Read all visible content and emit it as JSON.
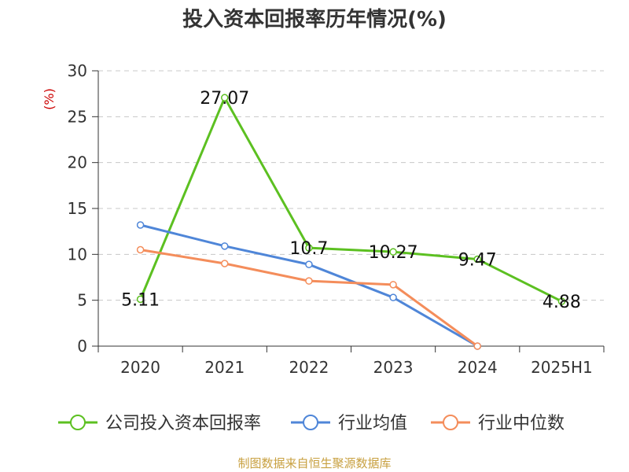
{
  "chart_data": {
    "type": "line",
    "title": "投入资本回报率历年情况(%)",
    "ylabel": "(%)",
    "categories": [
      "2020",
      "2021",
      "2022",
      "2023",
      "2024",
      "2025H1"
    ],
    "ylim": [
      0,
      30
    ],
    "yticks": [
      0,
      5,
      10,
      15,
      20,
      25,
      30
    ],
    "grid": true,
    "legend_position": "bottom",
    "series": [
      {
        "name": "公司投入资本回报率",
        "color": "#5cc021",
        "values": [
          5.11,
          27.07,
          10.7,
          10.27,
          9.47,
          4.88
        ],
        "labels": [
          "5.11",
          "27.07",
          "10.7",
          "10.27",
          "9.47",
          "4.88"
        ]
      },
      {
        "name": "行业均值",
        "color": "#4f86d8",
        "values": [
          13.2,
          10.9,
          8.9,
          5.3,
          0.0,
          null
        ]
      },
      {
        "name": "行业中位数",
        "color": "#f48d5b",
        "values": [
          10.5,
          9.0,
          7.1,
          6.7,
          0.0,
          null
        ]
      }
    ]
  },
  "footer": {
    "source": "制图数据来自恒生聚源数据库"
  }
}
